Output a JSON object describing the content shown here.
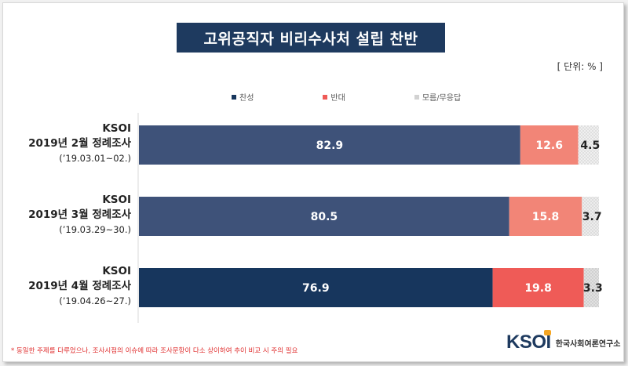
{
  "header": {
    "title": "고위공직자 비리수사처 설립 찬반",
    "unit": "[ 단위: % ]"
  },
  "footnote": "* 동일한 주제를 다루었으나, 조사시점의 이슈에 따라 조사문항이 다소 상이하여 추이 비교 시 주의 필요",
  "logo": {
    "mark": "KSOI",
    "text": "한국사회여론연구소"
  },
  "chart_data": {
    "type": "bar",
    "orientation": "horizontal",
    "stacked": true,
    "xlim": [
      0,
      100
    ],
    "categories": [
      {
        "org": "KSOI",
        "survey": "2019년 2월 정례조사",
        "period": "(’19.03.01~02.)"
      },
      {
        "org": "KSOI",
        "survey": "2019년 3월 정례조사",
        "period": "(’19.03.29~30.)"
      },
      {
        "org": "KSOI",
        "survey": "2019년 4월 정례조사",
        "period": "(’19.04.26~27.)"
      }
    ],
    "series": [
      {
        "name": "찬성",
        "values": [
          82.9,
          80.5,
          76.9
        ],
        "colors": [
          "#3e5279",
          "#3e5279",
          "#17365d"
        ],
        "legend_color": "#17365d"
      },
      {
        "name": "반대",
        "values": [
          12.6,
          15.8,
          19.8
        ],
        "colors": [
          "#f28577",
          "#f28577",
          "#ef5b57"
        ],
        "legend_color": "#ef5b57"
      },
      {
        "name": "모름/무응답",
        "values": [
          4.5,
          3.7,
          3.3
        ],
        "colors": [
          "#ececec",
          "#e8e8e8",
          "#d2d2d2"
        ],
        "legend_color": "#d2d2d2"
      }
    ],
    "legend_position": "top",
    "grid": false
  }
}
